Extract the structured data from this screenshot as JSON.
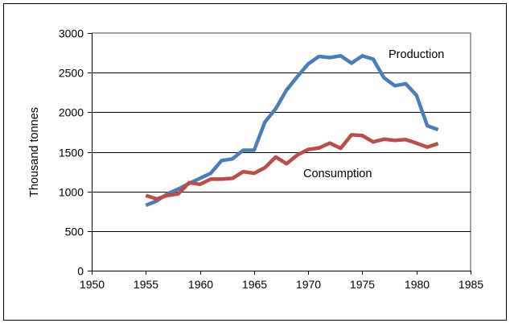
{
  "chart_data": {
    "type": "line",
    "title": "",
    "xlabel": "",
    "ylabel": "Thousand tonnes",
    "xlim": [
      1950,
      1985
    ],
    "ylim": [
      0,
      3000
    ],
    "x_ticks": [
      1950,
      1955,
      1960,
      1965,
      1970,
      1975,
      1980,
      1985
    ],
    "y_ticks": [
      0,
      500,
      1000,
      1500,
      2000,
      2500,
      3000
    ],
    "grid": "horizontal",
    "legend": "inline-labels",
    "x": [
      1955,
      1956,
      1957,
      1958,
      1959,
      1960,
      1961,
      1962,
      1963,
      1964,
      1965,
      1966,
      1967,
      1968,
      1969,
      1970,
      1971,
      1972,
      1973,
      1974,
      1975,
      1976,
      1977,
      1978,
      1979,
      1980,
      1981,
      1982
    ],
    "series": [
      {
        "name": "Production",
        "color": "#4a7ebb",
        "values": [
          825,
          880,
          970,
          1030,
          1100,
          1165,
          1230,
          1390,
          1410,
          1520,
          1520,
          1875,
          2045,
          2280,
          2450,
          2610,
          2705,
          2690,
          2712,
          2620,
          2712,
          2670,
          2435,
          2335,
          2360,
          2215,
          1830,
          1780
        ]
      },
      {
        "name": "Consumption",
        "color": "#be4b48",
        "values": [
          950,
          905,
          950,
          970,
          1110,
          1090,
          1155,
          1155,
          1165,
          1250,
          1230,
          1300,
          1435,
          1350,
          1460,
          1530,
          1550,
          1610,
          1545,
          1715,
          1705,
          1625,
          1660,
          1645,
          1655,
          1610,
          1560,
          1605
        ]
      }
    ],
    "annotations": [
      {
        "text": "Production",
        "series": "Production"
      },
      {
        "text": "Consumption",
        "series": "Consumption"
      }
    ]
  }
}
